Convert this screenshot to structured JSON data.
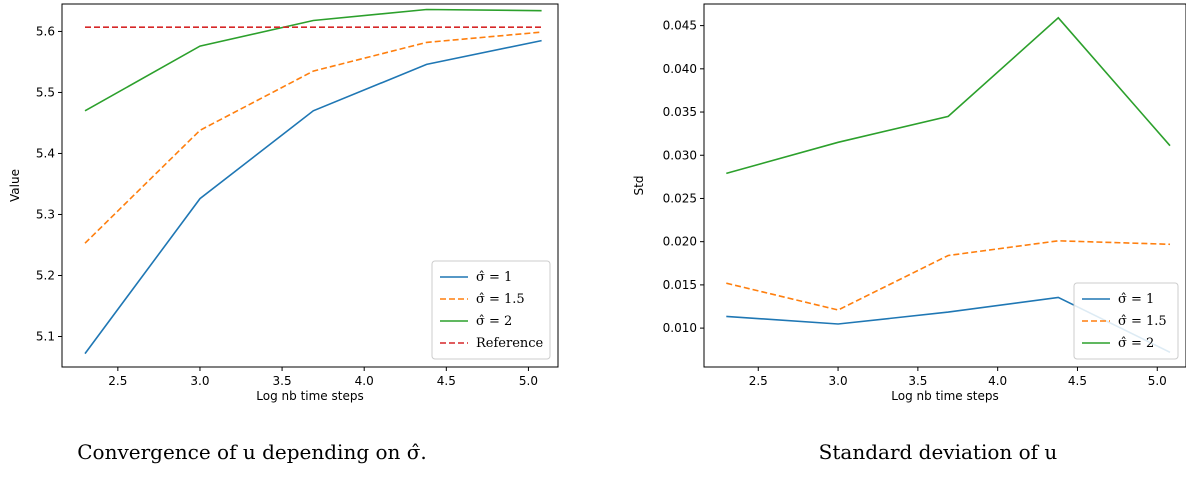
{
  "colors": {
    "blue": "#1f77b4",
    "orange": "#ff7f0e",
    "green": "#2ca02c",
    "red": "#d62728"
  },
  "captions": [
    {
      "text": "Convergence of u depending on σ̂."
    },
    {
      "text": "Standard deviation of u"
    }
  ],
  "chart_data": [
    {
      "type": "line",
      "xlabel": "Log nb time  steps",
      "ylabel": "Value",
      "xlim": [
        2.16,
        5.18
      ],
      "ylim": [
        5.05,
        5.645
      ],
      "xticks": [
        "2.5",
        "3.0",
        "3.5",
        "4.0",
        "4.5",
        "5.0"
      ],
      "yticks": [
        "5.1",
        "5.2",
        "5.3",
        "5.4",
        "5.5",
        "5.6"
      ],
      "x": [
        2.3,
        3.0,
        3.69,
        4.38,
        5.08
      ],
      "legend_position": "lower-right",
      "series": [
        {
          "name": "σ̂ =  1",
          "color": "#1f77b4",
          "dash": false,
          "values": [
            5.072,
            5.326,
            5.47,
            5.546,
            5.585
          ]
        },
        {
          "name": "σ̂ =  1.5",
          "color": "#ff7f0e",
          "dash": true,
          "values": [
            5.253,
            5.438,
            5.535,
            5.582,
            5.599
          ]
        },
        {
          "name": "σ̂ =  2",
          "color": "#2ca02c",
          "dash": false,
          "values": [
            5.47,
            5.576,
            5.618,
            5.636,
            5.634
          ]
        },
        {
          "name": "Reference",
          "color": "#d62728",
          "dash": true,
          "values": [
            5.607,
            5.607,
            5.607,
            5.607,
            5.607
          ]
        }
      ]
    },
    {
      "type": "line",
      "xlabel": "Log nb time  steps",
      "ylabel": "Std",
      "xlim": [
        2.16,
        5.18
      ],
      "ylim": [
        0.0055,
        0.0475
      ],
      "xticks": [
        "2.5",
        "3.0",
        "3.5",
        "4.0",
        "4.5",
        "5.0"
      ],
      "yticks": [
        "0.010",
        "0.015",
        "0.020",
        "0.025",
        "0.030",
        "0.035",
        "0.040",
        "0.045"
      ],
      "x": [
        2.3,
        3.0,
        3.69,
        4.38,
        5.08
      ],
      "legend_position": "lower-right",
      "series": [
        {
          "name": "σ̂ =  1",
          "color": "#1f77b4",
          "dash": false,
          "values": [
            0.01135,
            0.01048,
            0.01185,
            0.01355,
            0.0072
          ]
        },
        {
          "name": "σ̂ =  1.5",
          "color": "#ff7f0e",
          "dash": true,
          "values": [
            0.0152,
            0.0121,
            0.0184,
            0.0201,
            0.0197
          ]
        },
        {
          "name": "σ̂ =  2",
          "color": "#2ca02c",
          "dash": false,
          "values": [
            0.0279,
            0.0315,
            0.0345,
            0.0459,
            0.0311
          ]
        }
      ]
    }
  ]
}
